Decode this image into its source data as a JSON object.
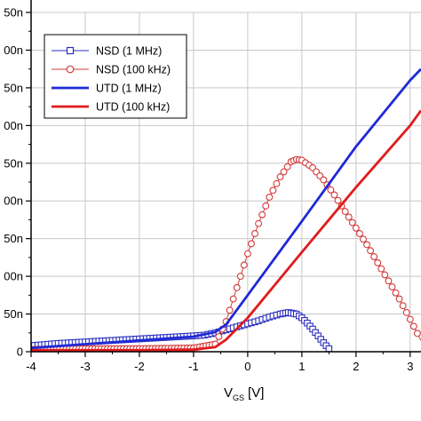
{
  "chart_data": {
    "type": "line",
    "xlabel_main": "V",
    "xlabel_sub": "GS",
    "xlabel_unit": "[V]",
    "xlim": [
      -4,
      3.2
    ],
    "ylim": [
      0,
      450
    ],
    "x_ticks": [
      {
        "value": -4,
        "label": "-4"
      },
      {
        "value": -3,
        "label": "-3"
      },
      {
        "value": -2,
        "label": "-2"
      },
      {
        "value": -1,
        "label": "-1"
      },
      {
        "value": 0,
        "label": "0"
      },
      {
        "value": 1,
        "label": "1"
      },
      {
        "value": 2,
        "label": "2"
      },
      {
        "value": 3,
        "label": "3"
      }
    ],
    "y_ticks": [
      {
        "value": 0,
        "label": "0"
      },
      {
        "value": 50,
        "label": "50n"
      },
      {
        "value": 100,
        "label": "00n"
      },
      {
        "value": 150,
        "label": "50n"
      },
      {
        "value": 200,
        "label": "00n"
      },
      {
        "value": 250,
        "label": "50n"
      },
      {
        "value": 300,
        "label": "00n"
      },
      {
        "value": 350,
        "label": "50n"
      },
      {
        "value": 400,
        "label": "00n"
      },
      {
        "value": 450,
        "label": "50n"
      }
    ],
    "grid": true,
    "legend_position": "top-left",
    "series": [
      {
        "name": "NSD (1 MHz)",
        "color": "#2a2fbf",
        "marker": "square",
        "x": [
          -4.0,
          -3.5,
          -3.0,
          -2.5,
          -2.0,
          -1.5,
          -1.0,
          -0.8,
          -0.6,
          -0.4,
          -0.2,
          0.0,
          0.2,
          0.4,
          0.6,
          0.75,
          0.9,
          1.0,
          1.1,
          1.2,
          1.3,
          1.4,
          1.5,
          1.55
        ],
        "y": [
          8,
          11,
          13,
          15,
          17,
          19,
          21,
          22,
          25,
          29,
          33,
          37,
          41,
          46,
          50,
          52,
          50,
          45,
          38,
          30,
          21,
          12,
          4,
          0
        ]
      },
      {
        "name": "NSD (100 kHz)",
        "color": "#d43a3a",
        "marker": "circle",
        "x": [
          -4.0,
          -3.0,
          -2.0,
          -1.0,
          -0.6,
          -0.4,
          -0.2,
          0.0,
          0.2,
          0.4,
          0.6,
          0.8,
          0.9,
          1.0,
          1.2,
          1.4,
          1.6,
          1.8,
          2.0,
          2.2,
          2.4,
          2.6,
          2.8,
          3.0,
          3.2
        ],
        "y": [
          3,
          4,
          4,
          5,
          10,
          40,
          85,
          130,
          170,
          205,
          232,
          252,
          255,
          254,
          244,
          228,
          208,
          186,
          164,
          142,
          118,
          94,
          70,
          43,
          15
        ]
      },
      {
        "name": "UTD (1 MHz)",
        "color": "#1e2ad6",
        "marker": "none",
        "x": [
          -4.0,
          -3.0,
          -2.0,
          -1.0,
          -0.6,
          -0.4,
          0.0,
          1.0,
          2.0,
          3.0,
          3.2
        ],
        "y": [
          5,
          10,
          15,
          20,
          26,
          36,
          75,
          173,
          272,
          360,
          375
        ]
      },
      {
        "name": "UTD (100 kHz)",
        "color": "#e01b1b",
        "marker": "none",
        "x": [
          -4.0,
          -2.0,
          -1.0,
          -0.6,
          -0.4,
          0.0,
          1.0,
          2.0,
          3.0,
          3.2
        ],
        "y": [
          2,
          2,
          3,
          6,
          16,
          45,
          132,
          218,
          300,
          320
        ]
      }
    ]
  }
}
